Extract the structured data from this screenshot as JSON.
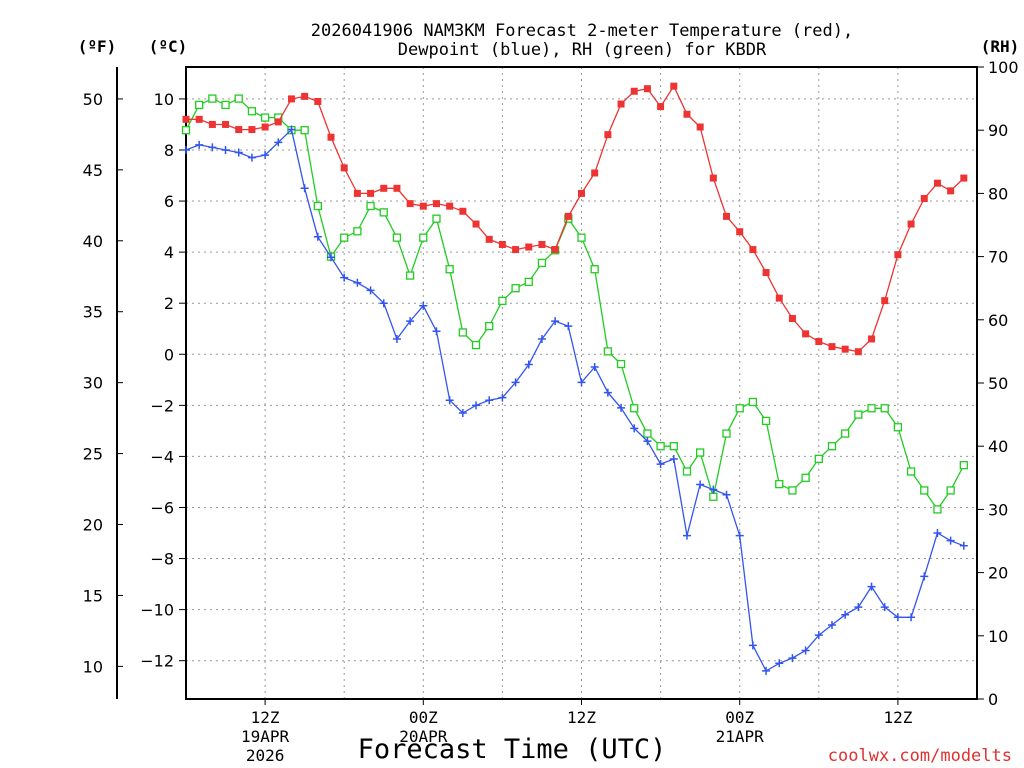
{
  "chart_data": {
    "type": "line",
    "title_line1": "2026041906 NAM3KM Forecast 2-meter Temperature (red),",
    "title_line2": "Dewpoint (blue), RH (green) for KBDR",
    "xlabel": "Forecast Time (UTC)",
    "credit": "coolwx.com/modelts",
    "units": {
      "f": "(ºF)",
      "c": "(ºC)",
      "rh": "(RH)"
    },
    "x_range_hours": [
      0,
      60
    ],
    "axes": {
      "f": {
        "range": [
          7.7,
          52.25
        ],
        "ticks": [
          10,
          15,
          20,
          25,
          30,
          35,
          40,
          45,
          50
        ]
      },
      "c": {
        "range": [
          -13.5,
          11.25
        ],
        "ticks": [
          -12,
          -10,
          -8,
          -6,
          -4,
          -2,
          0,
          2,
          4,
          6,
          8,
          10
        ]
      },
      "rh": {
        "range": [
          0,
          100
        ],
        "ticks": [
          0,
          10,
          20,
          30,
          40,
          50,
          60,
          70,
          80,
          90,
          100
        ]
      }
    },
    "grid": true,
    "x_ticks": [
      {
        "hour": 6,
        "label": "12Z",
        "sub1": "19APR",
        "sub2": "2026"
      },
      {
        "hour": 18,
        "label": "00Z",
        "sub1": "20APR",
        "sub2": ""
      },
      {
        "hour": 30,
        "label": "12Z",
        "sub1": "",
        "sub2": ""
      },
      {
        "hour": 42,
        "label": "00Z",
        "sub1": "21APR",
        "sub2": ""
      },
      {
        "hour": 54,
        "label": "12Z",
        "sub1": "",
        "sub2": ""
      }
    ],
    "series": [
      {
        "name": "2-meter Temperature",
        "unit": "C",
        "color": "#ee3333",
        "marker": "filled-square",
        "values": [
          9.2,
          9.2,
          9.0,
          9.0,
          8.8,
          8.8,
          8.9,
          9.1,
          10.0,
          10.1,
          9.9,
          8.5,
          7.3,
          6.3,
          6.3,
          6.5,
          6.5,
          5.9,
          5.8,
          5.9,
          5.8,
          5.6,
          5.1,
          4.5,
          4.3,
          4.1,
          4.2,
          4.3,
          4.1,
          5.4,
          6.3,
          7.1,
          8.6,
          9.8,
          10.3,
          10.4,
          9.7,
          10.5,
          9.4,
          8.9,
          6.9,
          5.4,
          4.8,
          4.1,
          3.2,
          2.2,
          1.4,
          0.8,
          0.5,
          0.3,
          0.2,
          0.1,
          0.6,
          2.1,
          3.9,
          5.1,
          6.1,
          6.7,
          6.4,
          6.9
        ]
      },
      {
        "name": "Dewpoint",
        "unit": "C",
        "color": "#3355ee",
        "marker": "plus",
        "values": [
          8.0,
          8.2,
          8.1,
          8.0,
          7.9,
          7.7,
          7.8,
          8.3,
          8.8,
          6.5,
          4.6,
          3.8,
          3.0,
          2.8,
          2.5,
          2.0,
          0.6,
          1.3,
          1.9,
          0.9,
          -1.8,
          -2.3,
          -2.0,
          -1.8,
          -1.7,
          -1.1,
          -0.4,
          0.6,
          1.3,
          1.1,
          -1.1,
          -0.5,
          -1.5,
          -2.1,
          -2.9,
          -3.4,
          -4.3,
          -4.1,
          -7.1,
          -5.1,
          -5.3,
          -5.5,
          -7.1,
          -11.4,
          -12.4,
          -12.1,
          -11.9,
          -11.6,
          -11.0,
          -10.6,
          -10.2,
          -9.9,
          -9.1,
          -9.9,
          -10.3,
          -10.3,
          -8.7,
          -7.0,
          -7.3,
          -7.5
        ]
      },
      {
        "name": "RH",
        "unit": "%",
        "color": "#22cc22",
        "marker": "open-square",
        "values": [
          90,
          94,
          95,
          94,
          95,
          93,
          92,
          92,
          90,
          90,
          78,
          70,
          73,
          74,
          78,
          77,
          73,
          67,
          73,
          76,
          68,
          58,
          56,
          59,
          63,
          65,
          66,
          69,
          71,
          76,
          73,
          68,
          55,
          53,
          46,
          42,
          40,
          40,
          36,
          39,
          32,
          42,
          46,
          47,
          44,
          34,
          33,
          35,
          38,
          40,
          42,
          45,
          46,
          46,
          43,
          36,
          33,
          30,
          33,
          37
        ]
      }
    ]
  }
}
